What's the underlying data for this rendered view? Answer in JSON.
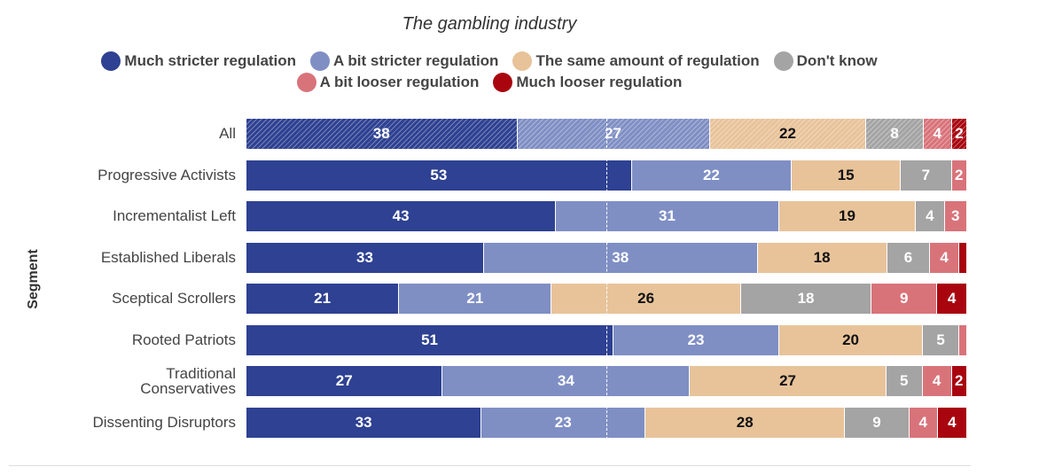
{
  "chart_data": {
    "type": "bar",
    "orientation": "horizontal-stacked",
    "subtitle": "The gambling industry",
    "ylabel": "Segment",
    "xlim": [
      0,
      100
    ],
    "reference_line": 50,
    "legend_position": "top",
    "categories": [
      "All",
      "Progressive Activists",
      "Incrementalist Left",
      "Established Liberals",
      "Sceptical Scrollers",
      "Rooted Patriots",
      "Traditional Conservatives",
      "Dissenting Disruptors"
    ],
    "series": [
      {
        "name": "Much stricter regulation",
        "color": "#2e4192",
        "values": [
          38,
          53,
          43,
          33,
          21,
          51,
          27,
          33
        ]
      },
      {
        "name": "A bit stricter regulation",
        "color": "#7f8fc4",
        "values": [
          27,
          22,
          31,
          38,
          21,
          23,
          34,
          23
        ]
      },
      {
        "name": "The same amount of regulation",
        "color": "#e8c39a",
        "values": [
          22,
          15,
          19,
          18,
          26,
          20,
          27,
          28
        ]
      },
      {
        "name": "Don't know",
        "color": "#a4a4a4",
        "values": [
          8,
          7,
          4,
          6,
          18,
          5,
          5,
          9
        ]
      },
      {
        "name": "A bit looser regulation",
        "color": "#d9737a",
        "values": [
          4,
          2,
          3,
          4,
          9,
          1,
          4,
          4
        ]
      },
      {
        "name": "Much looser regulation",
        "color": "#a8050f",
        "values": [
          2,
          0,
          0,
          1,
          4,
          0,
          2,
          4
        ]
      }
    ],
    "hatched_categories": [
      "All"
    ]
  }
}
